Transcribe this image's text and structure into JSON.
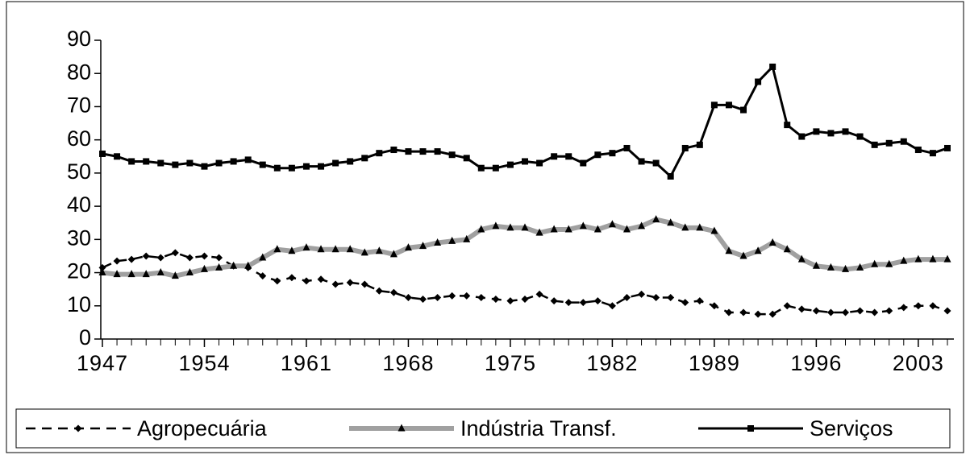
{
  "chart_data": {
    "type": "line",
    "x": [
      1947,
      1948,
      1949,
      1950,
      1951,
      1952,
      1953,
      1954,
      1955,
      1956,
      1957,
      1958,
      1959,
      1960,
      1961,
      1962,
      1963,
      1964,
      1965,
      1966,
      1967,
      1968,
      1969,
      1970,
      1971,
      1972,
      1973,
      1974,
      1975,
      1976,
      1977,
      1978,
      1979,
      1980,
      1981,
      1982,
      1983,
      1984,
      1985,
      1986,
      1987,
      1988,
      1989,
      1990,
      1991,
      1992,
      1993,
      1994,
      1995,
      1996,
      1997,
      1998,
      1999,
      2000,
      2001,
      2002,
      2003,
      2004,
      2005
    ],
    "series": [
      {
        "name": "Agropecuária",
        "color": "#000000",
        "marker": "diamond",
        "dashed": true,
        "values": [
          21.5,
          23.5,
          24,
          25,
          24.5,
          26,
          24.5,
          25,
          24.5,
          22,
          21.5,
          19,
          17.5,
          18.5,
          17.5,
          18,
          16.5,
          17,
          16.5,
          14.5,
          14,
          12.5,
          12,
          12.5,
          13,
          13,
          12.5,
          12,
          11.5,
          12,
          13.5,
          11.5,
          11,
          11,
          11.5,
          10,
          12.5,
          13.5,
          12.5,
          12.5,
          11,
          11.5,
          10,
          8,
          8,
          7.5,
          7.5,
          10,
          9,
          8.5,
          8,
          8,
          8.5,
          8,
          8.5,
          9.5,
          10,
          10,
          8.5
        ]
      },
      {
        "name": "Indústria Transf.",
        "color": "#a0a0a0",
        "marker": "triangle",
        "dashed": false,
        "values": [
          20,
          19.5,
          19.5,
          19.5,
          20,
          19,
          20,
          21,
          21.5,
          22,
          22,
          24.5,
          27,
          26.5,
          27.5,
          27,
          27,
          27,
          26,
          26.5,
          25.5,
          27.5,
          28,
          29,
          29.5,
          30,
          33,
          34,
          33.5,
          33.5,
          32,
          33,
          33,
          34,
          33,
          34.5,
          33,
          34,
          36,
          35,
          33.5,
          33.5,
          32.5,
          26.5,
          25,
          26.5,
          29,
          27,
          24,
          22,
          21.5,
          21,
          21.5,
          22.5,
          22.5,
          23.5,
          24,
          24,
          24
        ]
      },
      {
        "name": "Serviços",
        "color": "#000000",
        "marker": "square",
        "dashed": false,
        "values": [
          55.8,
          55,
          53.5,
          53.5,
          53,
          52.5,
          53,
          52,
          53,
          53.5,
          54,
          52.5,
          51.5,
          51.5,
          52,
          52,
          53,
          53.5,
          54.5,
          56,
          57,
          56.5,
          56.5,
          56.5,
          55.5,
          54.5,
          51.5,
          51.5,
          52.5,
          53.5,
          53,
          55,
          55,
          53,
          55.5,
          56,
          57.5,
          53.5,
          53,
          49,
          57.5,
          58.5,
          70.5,
          70.5,
          69,
          77.5,
          82,
          64.5,
          61,
          62.5,
          62,
          62.5,
          61,
          58.5,
          59,
          59.5,
          57,
          56,
          57.5
        ]
      }
    ],
    "xlim": [
      1947,
      2005
    ],
    "xticks": [
      1947,
      1954,
      1961,
      1968,
      1975,
      1982,
      1989,
      1996,
      2003
    ],
    "ylim": [
      0,
      90
    ],
    "yticks": [
      0,
      10,
      20,
      30,
      40,
      50,
      60,
      70,
      80,
      90
    ],
    "legend": "bottom"
  }
}
